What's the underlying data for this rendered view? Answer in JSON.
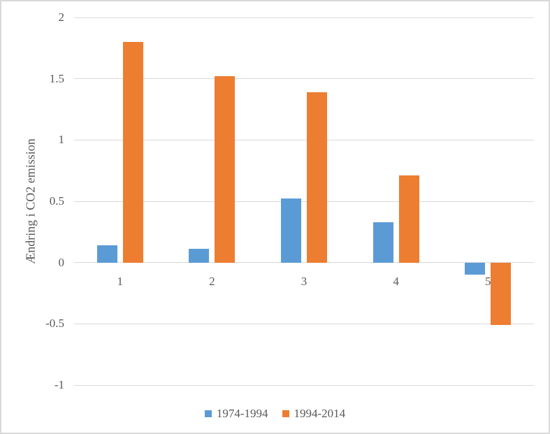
{
  "chart_data": {
    "type": "bar",
    "title": "",
    "ylabel": "Ændring i CO2 emission",
    "xlabel": "",
    "categories": [
      "1",
      "2",
      "3",
      "4",
      "5"
    ],
    "series": [
      {
        "name": "1974-1994",
        "color": "#5B9BD5",
        "values": [
          0.14,
          0.11,
          0.52,
          0.33,
          -0.1
        ]
      },
      {
        "name": "1994-2014",
        "color": "#ED7D31",
        "values": [
          1.8,
          1.52,
          1.39,
          0.71,
          -0.51
        ]
      }
    ],
    "ylim": [
      -1,
      2
    ],
    "ytick_step": 0.5,
    "ytick_labels": [
      "2",
      "1.5",
      "1",
      "0.5",
      "0",
      "-0.5",
      "-1"
    ],
    "grid": true,
    "legend_position": "bottom",
    "styles": {
      "gridline_color": "#D9D9D9",
      "axis_text_color": "#595959",
      "background": "#FFFFFF",
      "border_color": "#D9D9D9"
    }
  }
}
